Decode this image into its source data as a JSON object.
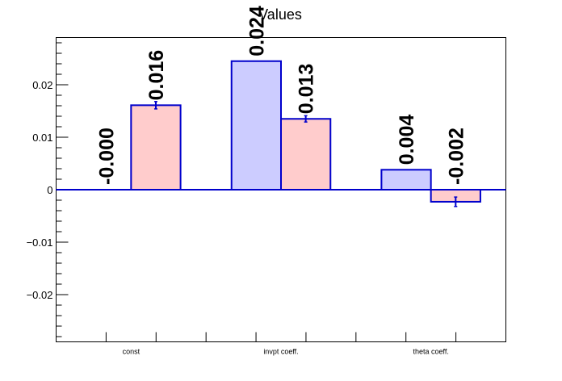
{
  "chart_data": {
    "type": "bar",
    "title": "Values",
    "xlabel": "",
    "ylabel": "",
    "categories": [
      "const",
      "invpt coeff.",
      "theta coeff."
    ],
    "ylim": [
      -0.029,
      0.029
    ],
    "yticks": [
      -0.02,
      -0.01,
      0,
      0.01,
      0.02
    ],
    "ytick_labels": [
      "−0.02",
      "−0.01",
      "0",
      "0.01",
      "0.02"
    ],
    "grid": false,
    "legend": "none",
    "series": [
      {
        "values": [
          0.0,
          0.0245,
          0.0038
        ],
        "errors": [
          0.0,
          0.0,
          0.0
        ],
        "labels": [
          "-0.000",
          "0.024",
          "0.004"
        ],
        "fill": "#ccccff",
        "edge": "#0000cc"
      },
      {
        "values": [
          0.0161,
          0.0135,
          -0.0023
        ],
        "errors": [
          0.0007,
          0.0006,
          0.0009
        ],
        "labels": [
          "0.016",
          "0.013",
          "-0.002"
        ],
        "fill": "#ffcccc",
        "edge": "#0000cc"
      }
    ]
  }
}
